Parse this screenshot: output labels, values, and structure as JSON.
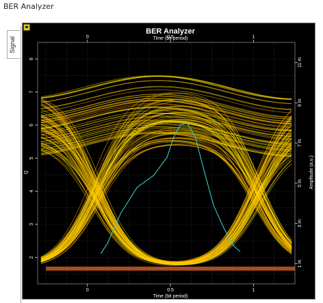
{
  "window": {
    "title": "BER Analyzer"
  },
  "tabs": [
    {
      "label": "Signal"
    }
  ],
  "chart_data": {
    "type": "line",
    "title": "BER Analyzer",
    "top_axis": {
      "label": "Time (bit period)",
      "ticks": [
        "0",
        "0.5",
        "1"
      ],
      "range": [
        -0.3,
        1.25
      ]
    },
    "bottom_axis": {
      "label": "Time (bit period)",
      "ticks": [
        "0",
        "0.5",
        "1"
      ],
      "range": [
        -0.3,
        1.25
      ]
    },
    "left_axis": {
      "label": "Q",
      "ticks": [
        "2",
        "3",
        "4",
        "5",
        "6",
        "7",
        "8"
      ],
      "range": [
        1.2,
        8.5
      ]
    },
    "right_axis": {
      "label": "Amplitude (a.u.)",
      "ticks": [
        "1 m",
        "3 m",
        "5 m",
        "7 m",
        "9 m",
        "11 m"
      ],
      "range": [
        0,
        12
      ]
    },
    "grid": true,
    "series": [
      {
        "color": "#3ec8c8",
        "x": [
          0.08,
          0.12,
          0.2,
          0.3,
          0.4,
          0.48,
          0.52,
          0.56,
          0.6,
          0.65,
          0.7,
          0.76,
          0.82,
          0.88,
          0.92
        ],
        "y": [
          1.5,
          2.0,
          3.5,
          4.8,
          5.4,
          6.3,
          7.3,
          7.9,
          8.0,
          7.3,
          5.7,
          3.9,
          2.8,
          1.9,
          1.6
        ]
      }
    ],
    "eye_diagram": {
      "colors": [
        "#ffe000",
        "#ffb000",
        "#ff7000",
        "#e00000"
      ]
    }
  }
}
